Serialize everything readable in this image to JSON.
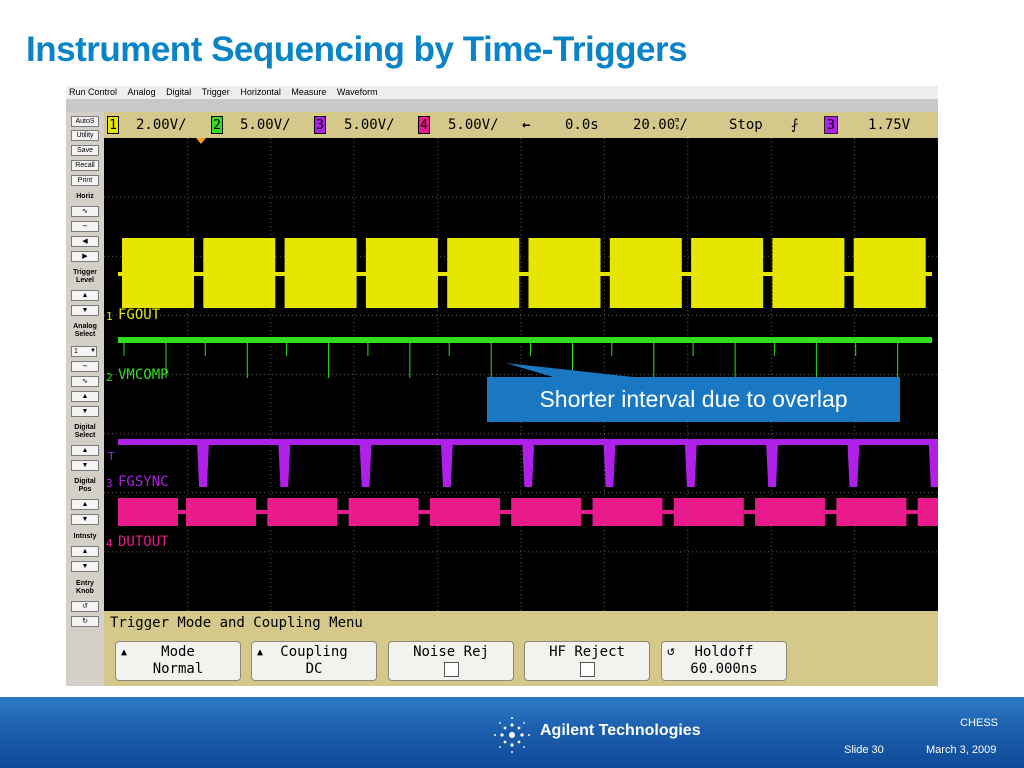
{
  "slide": {
    "title": "Instrument Sequencing by Time-Triggers",
    "callout": "Shorter interval due to overlap"
  },
  "scope": {
    "menu": [
      "Run Control",
      "Analog",
      "Digital",
      "Trigger",
      "Horizontal",
      "Measure",
      "Waveform"
    ],
    "status": {
      "ch1_num": "1",
      "ch1_scale": "2.00V/",
      "ch2_num": "2",
      "ch2_scale": "5.00V/",
      "ch3_num": "3",
      "ch3_scale": "5.00V/",
      "ch4_num": "4",
      "ch4_scale": "5.00V/",
      "delay_arrow": "←",
      "delay": "0.0s",
      "timebase": "20.00",
      "timebase_unit_top": "m",
      "timebase_unit_bottom": "s",
      "timebase_suffix": "/",
      "run_state": "Stop",
      "trigger_edge": "⨏",
      "trigger_source": "3",
      "trigger_level": "1.75V"
    },
    "left_panel": {
      "buttons": [
        "AutoS",
        "Utility",
        "Save",
        "Recall",
        "Print"
      ],
      "horiz_label": "Horiz",
      "horiz_controls": [
        "∿",
        "∼",
        "◀",
        "▶"
      ],
      "trigger_level_label": "Trigger Level",
      "analog_select_label": "Analog Select",
      "analog_select_value": "1",
      "analog_controls": [
        "∼",
        "∿"
      ],
      "digital_select_label": "Digital Select",
      "digital_pos_label": "Digital Pos",
      "intensity_label": "Intnsty",
      "entry_knob_label": "Entry Knob",
      "arrow_up": "▲",
      "arrow_down": "▼",
      "knob_ccw": "↺",
      "knob_cw": "↻"
    },
    "channels": [
      {
        "marker": "1",
        "label": "FGOUT",
        "color": "#e6e600"
      },
      {
        "marker": "2",
        "label": "VMCOMP",
        "color": "#33dd22"
      },
      {
        "marker": "3",
        "label": "FGSYNC",
        "color": "#b020e8"
      },
      {
        "marker": "4",
        "label": "DUTOUT",
        "color": "#e81a8c"
      }
    ],
    "trigger_marker": "T",
    "softkey_menu": {
      "title": "Trigger Mode and Coupling Menu",
      "keys": [
        {
          "line1": "Mode",
          "line2": "Normal"
        },
        {
          "line1": "Coupling",
          "line2": "DC"
        },
        {
          "line1": "Noise Rej",
          "line2": ""
        },
        {
          "line1": "HF Reject",
          "line2": ""
        },
        {
          "line1": "Holdoff",
          "line2": "60.000ns"
        }
      ]
    }
  },
  "footer": {
    "logo": "Agilent Technologies",
    "project": "CHESS",
    "slide_number": "Slide 30",
    "date": "March 3, 2009"
  },
  "colors": {
    "title": "#0a84c8",
    "callout_bg": "#1a78c2",
    "status_bar": "#d4c98a",
    "footer": "#1c5fae"
  }
}
